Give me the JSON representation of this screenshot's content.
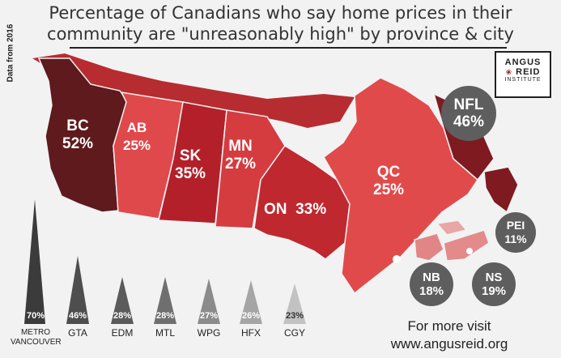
{
  "title": {
    "line1": "Percentage of Canadians who say home prices in their",
    "line2": "community are \"unreasonably high\" by province & city"
  },
  "side_note": "Data from 2016",
  "logo": {
    "line1": "ANGUS",
    "line2": "REID",
    "line3": "INSTITUTE"
  },
  "provinces": [
    {
      "name": "BC",
      "value": "52%",
      "color": "#5e1a1d"
    },
    {
      "name": "AB",
      "value": "25%",
      "color": "#e0494c"
    },
    {
      "name": "SK",
      "value": "35%",
      "color": "#b3202a"
    },
    {
      "name": "MN",
      "value": "27%",
      "color": "#d53c3f"
    },
    {
      "name": "ON",
      "value": "33%",
      "color": "#c0282f"
    },
    {
      "name": "QC",
      "value": "25%",
      "color": "#e14a4b"
    },
    {
      "name": "NFL",
      "value": "46%",
      "color": "#7e1a20"
    },
    {
      "name": "PEI",
      "value": "11%",
      "color": "#e9a6a6"
    },
    {
      "name": "NB",
      "value": "18%",
      "color": "#e28586"
    },
    {
      "name": "NS",
      "value": "19%",
      "color": "#e38a8a"
    }
  ],
  "territories_color": "#b72c30",
  "cities": [
    {
      "name": "METRO\nVANCOUVER",
      "value": "70%",
      "color": "#3b3b3b"
    },
    {
      "name": "GTA",
      "value": "46%",
      "color": "#4e4e4e"
    },
    {
      "name": "EDM",
      "value": "28%",
      "color": "#5b5b5b"
    },
    {
      "name": "MTL",
      "value": "28%",
      "color": "#6f6f6f"
    },
    {
      "name": "WPG",
      "value": "27%",
      "color": "#8b8b8b"
    },
    {
      "name": "HFX",
      "value": "26%",
      "color": "#a5a5a5"
    },
    {
      "name": "CGY",
      "value": "23%",
      "color": "#c2c2c2"
    }
  ],
  "cta": {
    "line1": "For more visit",
    "line2": "www.angusreid.org"
  }
}
